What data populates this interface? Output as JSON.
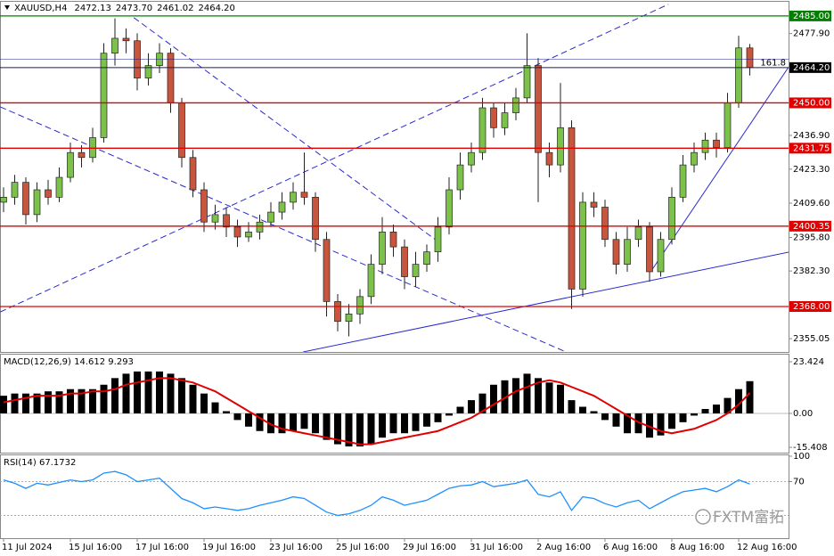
{
  "chart_data": [
    {
      "type": "candlestick",
      "symbol": "XAUUSD,H4",
      "header_values": [
        2472.13,
        2473.7,
        2461.02,
        2464.2
      ],
      "header_labels": [
        "2472.13",
        "2473.70",
        "2461.02",
        "2464.20"
      ],
      "categories": [
        "11 Jul 2024",
        null,
        null,
        null,
        null,
        null,
        "15 Jul 16:00",
        null,
        null,
        null,
        null,
        null,
        "17 Jul 16:00",
        null,
        null,
        null,
        null,
        null,
        "19 Jul 16:00",
        null,
        null,
        null,
        null,
        null,
        "23 Jul 16:00",
        null,
        null,
        null,
        null,
        null,
        "25 Jul 16:00",
        null,
        null,
        null,
        null,
        null,
        "29 Jul 16:00",
        null,
        null,
        null,
        null,
        null,
        "31 Jul 16:00",
        null,
        null,
        null,
        null,
        null,
        "2 Aug 16:00",
        null,
        null,
        null,
        null,
        null,
        "6 Aug 16:00",
        null,
        null,
        null,
        null,
        null,
        "8 Aug 16:00",
        null,
        null,
        null,
        null,
        null,
        "12 Aug 16:00",
        null
      ],
      "opens": [
        2410,
        2412,
        2418,
        2405,
        2415,
        2412,
        2420,
        2430,
        2428,
        2436,
        2470,
        2476,
        2475,
        2460,
        2465,
        2470,
        2450,
        2428,
        2415,
        2402,
        2405,
        2400,
        2396,
        2398,
        2402,
        2406,
        2410,
        2414,
        2412,
        2395,
        2370,
        2362,
        2365,
        2372,
        2385,
        2398,
        2392,
        2380,
        2385,
        2390,
        2400,
        2415,
        2425,
        2430,
        2448,
        2440,
        2446,
        2452,
        2465,
        2430,
        2425,
        2440,
        2375,
        2410,
        2408,
        2395,
        2385,
        2395,
        2400,
        2382,
        2395,
        2412,
        2425,
        2430,
        2435,
        2432,
        2450,
        2472.13
      ],
      "highs": [
        2416,
        2421,
        2420,
        2418,
        2419,
        2424,
        2434,
        2433,
        2440,
        2474,
        2484,
        2480,
        2478,
        2470,
        2474,
        2472,
        2452,
        2431,
        2418,
        2409,
        2408,
        2403,
        2402,
        2405,
        2410,
        2414,
        2418,
        2430,
        2414,
        2398,
        2373,
        2369,
        2375,
        2389,
        2404,
        2401,
        2395,
        2390,
        2393,
        2404,
        2420,
        2430,
        2434,
        2452,
        2450,
        2450,
        2456,
        2478,
        2468,
        2434,
        2458,
        2443,
        2414,
        2414,
        2411,
        2398,
        2400,
        2403,
        2402,
        2398,
        2416,
        2429,
        2434,
        2438,
        2438,
        2454,
        2477,
        2473.7
      ],
      "lows": [
        2406,
        2409,
        2401,
        2402,
        2409,
        2410,
        2418,
        2424,
        2426,
        2434,
        2465,
        2470,
        2455,
        2457,
        2462,
        2446,
        2424,
        2412,
        2398,
        2399,
        2396,
        2392,
        2394,
        2395,
        2400,
        2403,
        2407,
        2409,
        2390,
        2364,
        2358,
        2356,
        2361,
        2369,
        2381,
        2388,
        2375,
        2376,
        2382,
        2386,
        2397,
        2411,
        2422,
        2427,
        2436,
        2437,
        2443,
        2450,
        2410,
        2420,
        2422,
        2367,
        2372,
        2404,
        2392,
        2381,
        2382,
        2392,
        2378,
        2380,
        2393,
        2410,
        2422,
        2427,
        2428,
        2430,
        2448,
        2461.02
      ],
      "closes": [
        2412,
        2418,
        2405,
        2415,
        2412,
        2420,
        2430,
        2428,
        2436,
        2470,
        2476,
        2475,
        2460,
        2465,
        2470,
        2450,
        2428,
        2415,
        2402,
        2405,
        2400,
        2396,
        2398,
        2402,
        2406,
        2410,
        2414,
        2412,
        2395,
        2370,
        2362,
        2365,
        2372,
        2385,
        2398,
        2392,
        2380,
        2385,
        2390,
        2400,
        2415,
        2425,
        2430,
        2448,
        2440,
        2446,
        2452,
        2465,
        2430,
        2425,
        2440,
        2375,
        2410,
        2408,
        2395,
        2385,
        2395,
        2400,
        2382,
        2395,
        2412,
        2425,
        2430,
        2435,
        2432,
        2450,
        2472.13,
        2464.2
      ],
      "up_color": "#7cc24a",
      "down_color": "#c8553d",
      "ylim": [
        2349.7,
        2490.7
      ],
      "yticks": [
        {
          "value": 2477.9,
          "label": "2477.90"
        },
        {
          "value": 2436.9,
          "label": "2436.90"
        },
        {
          "value": 2423.3,
          "label": "2423.30"
        },
        {
          "value": 2409.6,
          "label": "2409.60"
        },
        {
          "value": 2395.8,
          "label": "2395.80"
        },
        {
          "value": 2382.3,
          "label": "2382.30"
        },
        2355.05
      ],
      "levels": [
        {
          "value": 2485,
          "label": "2485.00",
          "color": "#008000"
        },
        {
          "value": 2450,
          "label": "2450.00",
          "color": "#e00000"
        },
        {
          "value": 2431.75,
          "label": "2431.75",
          "color": "#e00000"
        },
        {
          "value": 2400.35,
          "label": "2400.35",
          "color": "#e00000"
        },
        {
          "value": 2368,
          "label": "2368.00",
          "color": "#e00000"
        }
      ],
      "current_price": {
        "value": 2464.2,
        "label": "2464.20",
        "color": "#000000"
      },
      "fib_level": {
        "value": 2467.6,
        "label": "161.8",
        "color": "#1a1a8c"
      },
      "trendlines": [
        {
          "x": [
            -0.3,
            59.7
          ],
          "y": [
            2365.8,
            2489.7
          ],
          "style": "dashed",
          "color": "#2a2ad0"
        },
        {
          "x": [
            -0.3,
            50.5
          ],
          "y": [
            2448.4,
            2349.7
          ],
          "style": "dashed",
          "color": "#2a2ad0"
        },
        {
          "x": [
            11.7,
            38.9
          ],
          "y": [
            2484.3,
            2394.5
          ],
          "style": "dashed",
          "color": "#2a2ad0"
        },
        {
          "x": [
            26.9,
            70.5
          ],
          "y": [
            2349.7,
            2389.9
          ],
          "style": "solid",
          "color": "#2a2ad0"
        },
        {
          "x": [
            58.1,
            70.5
          ],
          "y": [
            2382.0,
            2464.5
          ],
          "style": "solid",
          "color": "#2a2ad0"
        }
      ],
      "watermark": "FXTM富拓"
    },
    {
      "type": "macd",
      "title": "MACD(12,26,9) 14.612 9.293",
      "histogram": [
        8,
        9,
        9,
        9,
        10,
        10,
        11,
        11,
        11,
        13,
        16,
        18,
        19,
        19,
        19,
        18,
        16,
        13,
        9,
        5,
        1,
        -3,
        -6,
        -8,
        -9,
        -9,
        -8,
        -7,
        -9,
        -12,
        -14,
        -15,
        -15,
        -14,
        -11,
        -9,
        -9,
        -8,
        -6,
        -4,
        -1,
        3,
        6,
        9,
        13,
        15,
        16,
        18,
        16,
        14,
        13,
        6,
        3,
        1,
        -3,
        -6,
        -9,
        -9,
        -11,
        -10,
        -7,
        -4,
        -1,
        2,
        4,
        7,
        11,
        14.612
      ],
      "signal": [
        5,
        6,
        7,
        8,
        8,
        8,
        9,
        9,
        10,
        10,
        11,
        13,
        14,
        15,
        16,
        16,
        15,
        14,
        12,
        10,
        7,
        4,
        1,
        -2,
        -5,
        -7,
        -8,
        -9,
        -10,
        -11,
        -12,
        -13,
        -14,
        -14,
        -13,
        -12,
        -11,
        -10,
        -9,
        -8,
        -6,
        -4,
        -2,
        1,
        4,
        7,
        10,
        12,
        14,
        15,
        14,
        12,
        10,
        8,
        5,
        2,
        -1,
        -4,
        -6,
        -8,
        -9,
        -8,
        -7,
        -5,
        -3,
        0,
        4,
        9.293
      ],
      "histogram_color": "#000000",
      "signal_color": "#e00000",
      "ylim": [
        -17.4,
        26.65
      ],
      "yticks": [
        23.424,
        {
          "value": 0,
          "label": "0.00"
        },
        -15.408
      ]
    },
    {
      "type": "line",
      "title": "RSI(14) 67.1732",
      "values": [
        72,
        68,
        62,
        68,
        66,
        69,
        72,
        70,
        72,
        80,
        82,
        78,
        70,
        72,
        74,
        62,
        50,
        45,
        38,
        40,
        38,
        36,
        38,
        42,
        45,
        48,
        52,
        50,
        42,
        34,
        30,
        32,
        36,
        42,
        52,
        48,
        42,
        45,
        48,
        55,
        62,
        65,
        66,
        70,
        64,
        66,
        68,
        72,
        55,
        52,
        58,
        36,
        52,
        50,
        44,
        40,
        45,
        48,
        38,
        45,
        52,
        58,
        60,
        62,
        58,
        64,
        72,
        67.1732
      ],
      "color": "#1e90ff",
      "ylim": [
        0,
        100
      ],
      "yticks": [
        100,
        70
      ],
      "levels": [
        70,
        30
      ]
    }
  ]
}
